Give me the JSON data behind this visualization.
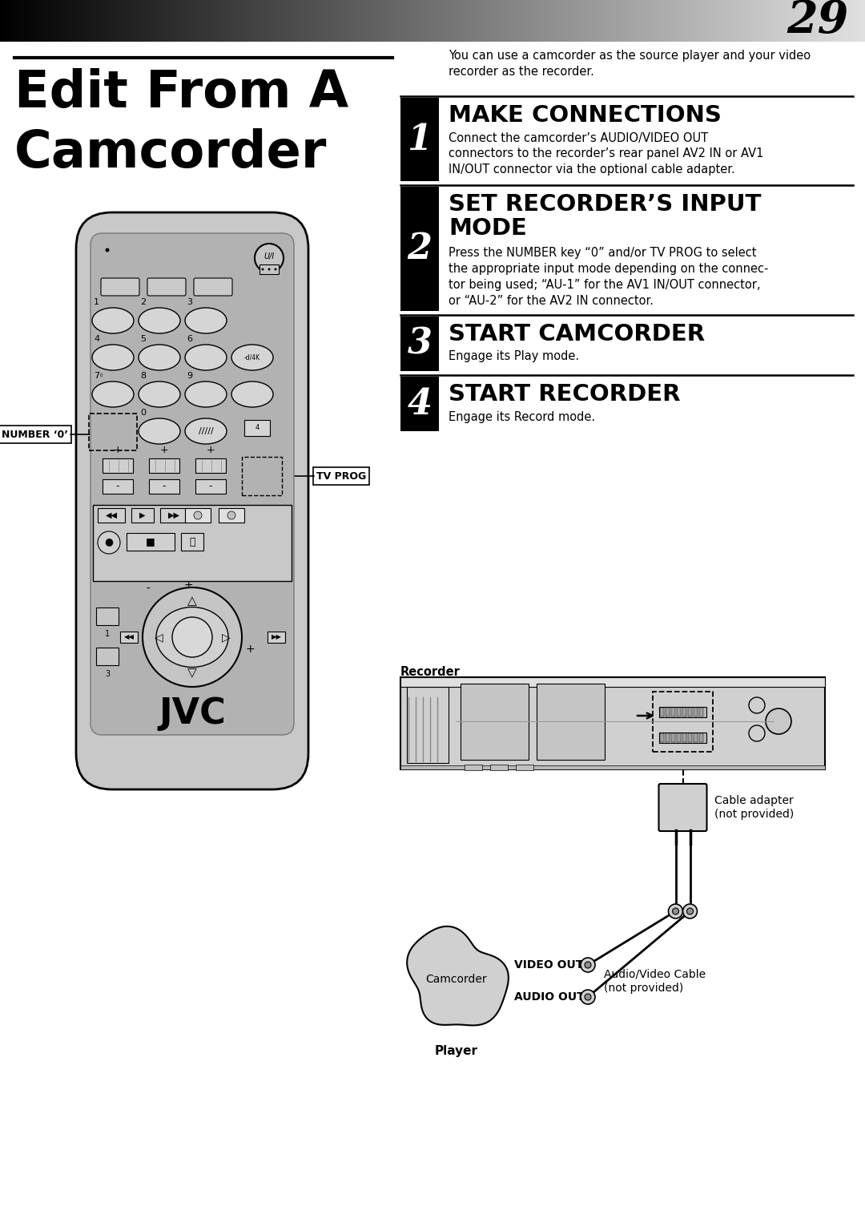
{
  "page_number": "29",
  "title_line1": "Edit From A",
  "title_line2": "Camcorder",
  "intro_text": "You can use a camcorder as the source player and your video\nrecorder as the recorder.",
  "steps": [
    {
      "num": "1",
      "heading": "MAKE CONNECTIONS",
      "body": "Connect the camcorder’s AUDIO/VIDEO OUT\nconnectors to the recorder’s rear panel AV2 IN or AV1\nIN/OUT connector via the optional cable adapter."
    },
    {
      "num": "2",
      "heading": "SET RECORDER’S INPUT\nMODE",
      "body": "Press the NUMBER key “0” and/or TV PROG to select\nthe appropriate input mode depending on the connec-\ntor being used; “AU-1” for the AV1 IN/OUT connector,\nor “AU-2” for the AV2 IN connector."
    },
    {
      "num": "3",
      "heading": "START CAMCORDER",
      "body": "Engage its Play mode."
    },
    {
      "num": "4",
      "heading": "START RECORDER",
      "body": "Engage its Record mode."
    }
  ],
  "recorder_label": "Recorder",
  "cable_adapter_label": "Cable adapter\n(not provided)",
  "audio_video_cable_label": "Audio/Video Cable\n(not provided)",
  "video_out_label": "VIDEO OUT",
  "audio_out_label": "AUDIO OUT",
  "camcorder_label": "Camcorder",
  "player_label": "Player",
  "number0_label": "NUMBER ‘0’",
  "tvprog_label": "TV PROG",
  "bg_color": "#ffffff",
  "remote_body_color": "#c8c8c8",
  "remote_inner_color": "#b8b8b8"
}
